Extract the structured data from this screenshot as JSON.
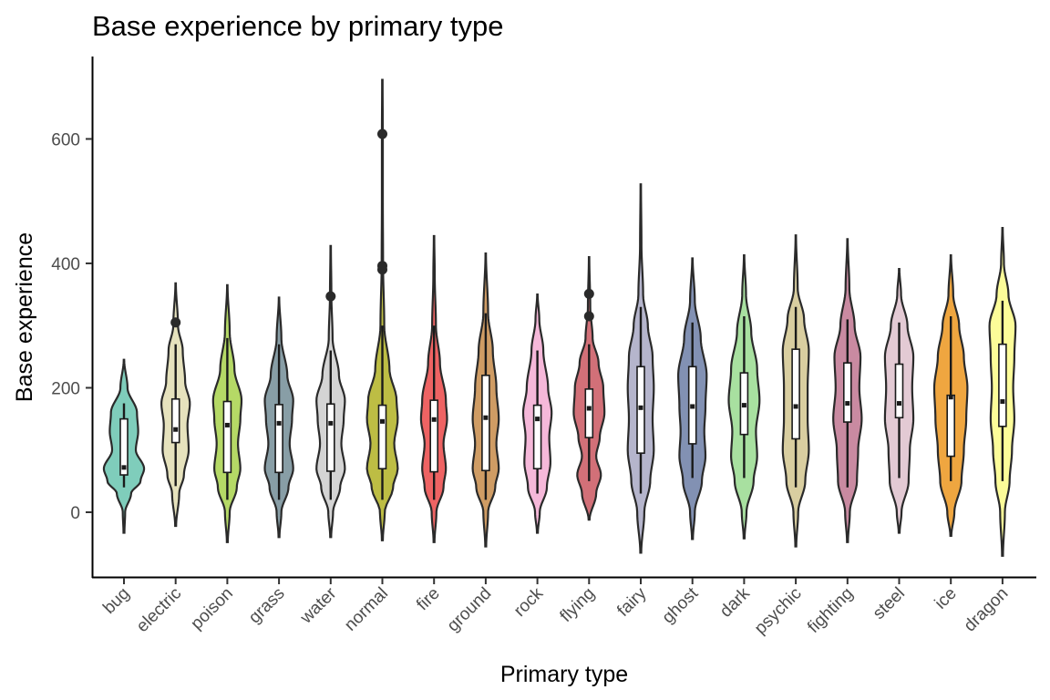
{
  "chart_data": {
    "type": "violin",
    "title": "Base experience by primary type",
    "xlabel": "Primary type",
    "ylabel": "Base experience",
    "ylim": [
      -105,
      730
    ],
    "yticks": [
      0,
      200,
      400,
      600
    ],
    "grid": false,
    "legend": "none",
    "categories": [
      {
        "name": "bug",
        "color": "#7fcdbb",
        "ymin": -33,
        "ymax": 245,
        "q1": 60,
        "median": 72,
        "q3": 150,
        "whisker_low": 40,
        "whisker_high": 175,
        "outliers": [],
        "density": [
          [
            -33,
            0.02
          ],
          [
            0,
            0.05
          ],
          [
            30,
            0.3
          ],
          [
            50,
            0.7
          ],
          [
            70,
            0.85
          ],
          [
            100,
            0.5
          ],
          [
            130,
            0.6
          ],
          [
            160,
            0.55
          ],
          [
            200,
            0.15
          ],
          [
            245,
            0.01
          ]
        ]
      },
      {
        "name": "electric",
        "color": "#e6e2bd",
        "ymin": -22,
        "ymax": 368,
        "q1": 112,
        "median": 133,
        "q3": 182,
        "whisker_low": 42,
        "whisker_high": 270,
        "outliers": [
          305
        ],
        "density": [
          [
            -22,
            0.02
          ],
          [
            30,
            0.15
          ],
          [
            60,
            0.35
          ],
          [
            100,
            0.55
          ],
          [
            140,
            0.5
          ],
          [
            175,
            0.6
          ],
          [
            210,
            0.4
          ],
          [
            260,
            0.3
          ],
          [
            300,
            0.1
          ],
          [
            368,
            0.01
          ]
        ]
      },
      {
        "name": "poison",
        "color": "#b5d966",
        "ymin": -48,
        "ymax": 365,
        "q1": 64,
        "median": 140,
        "q3": 178,
        "whisker_low": 20,
        "whisker_high": 280,
        "outliers": [],
        "density": [
          [
            -48,
            0.02
          ],
          [
            0,
            0.1
          ],
          [
            40,
            0.4
          ],
          [
            70,
            0.55
          ],
          [
            110,
            0.45
          ],
          [
            150,
            0.55
          ],
          [
            180,
            0.6
          ],
          [
            230,
            0.3
          ],
          [
            290,
            0.1
          ],
          [
            365,
            0.01
          ]
        ]
      },
      {
        "name": "grass",
        "color": "#889ea6",
        "ymin": -40,
        "ymax": 345,
        "q1": 64,
        "median": 143,
        "q3": 173,
        "whisker_low": 20,
        "whisker_high": 270,
        "outliers": [],
        "density": [
          [
            -40,
            0.02
          ],
          [
            0,
            0.1
          ],
          [
            40,
            0.4
          ],
          [
            70,
            0.6
          ],
          [
            110,
            0.45
          ],
          [
            150,
            0.55
          ],
          [
            180,
            0.6
          ],
          [
            220,
            0.35
          ],
          [
            280,
            0.1
          ],
          [
            345,
            0.01
          ]
        ]
      },
      {
        "name": "water",
        "color": "#d4d4d4",
        "ymin": -40,
        "ymax": 428,
        "q1": 66,
        "median": 143,
        "q3": 174,
        "whisker_low": 20,
        "whisker_high": 260,
        "outliers": [
          347
        ],
        "density": [
          [
            -40,
            0.02
          ],
          [
            0,
            0.1
          ],
          [
            40,
            0.4
          ],
          [
            70,
            0.6
          ],
          [
            110,
            0.45
          ],
          [
            150,
            0.55
          ],
          [
            180,
            0.6
          ],
          [
            220,
            0.35
          ],
          [
            280,
            0.08
          ],
          [
            350,
            0.03
          ],
          [
            428,
            0.01
          ]
        ]
      },
      {
        "name": "normal",
        "color": "#bdbd44",
        "ymin": -45,
        "ymax": 695,
        "q1": 70,
        "median": 146,
        "q3": 172,
        "whisker_low": 20,
        "whisker_high": 300,
        "outliers": [
          608,
          396,
          390
        ],
        "density": [
          [
            -45,
            0.02
          ],
          [
            0,
            0.1
          ],
          [
            40,
            0.45
          ],
          [
            70,
            0.65
          ],
          [
            110,
            0.5
          ],
          [
            150,
            0.65
          ],
          [
            180,
            0.6
          ],
          [
            230,
            0.3
          ],
          [
            300,
            0.08
          ],
          [
            400,
            0.03
          ],
          [
            500,
            0.02
          ],
          [
            600,
            0.02
          ],
          [
            695,
            0.01
          ]
        ]
      },
      {
        "name": "fire",
        "color": "#ee6363",
        "ymin": -48,
        "ymax": 444,
        "q1": 65,
        "median": 149,
        "q3": 180,
        "whisker_low": 20,
        "whisker_high": 300,
        "outliers": [],
        "density": [
          [
            -48,
            0.02
          ],
          [
            0,
            0.1
          ],
          [
            40,
            0.4
          ],
          [
            70,
            0.5
          ],
          [
            110,
            0.4
          ],
          [
            150,
            0.55
          ],
          [
            180,
            0.5
          ],
          [
            240,
            0.25
          ],
          [
            300,
            0.08
          ],
          [
            380,
            0.03
          ],
          [
            444,
            0.01
          ]
        ]
      },
      {
        "name": "ground",
        "color": "#cf9c64",
        "ymin": -55,
        "ymax": 416,
        "q1": 67,
        "median": 152,
        "q3": 220,
        "whisker_low": 20,
        "whisker_high": 320,
        "outliers": [],
        "density": [
          [
            -55,
            0.02
          ],
          [
            0,
            0.1
          ],
          [
            40,
            0.4
          ],
          [
            70,
            0.55
          ],
          [
            110,
            0.45
          ],
          [
            150,
            0.55
          ],
          [
            200,
            0.45
          ],
          [
            260,
            0.3
          ],
          [
            320,
            0.1
          ],
          [
            416,
            0.01
          ]
        ]
      },
      {
        "name": "rock",
        "color": "#f5b8d9",
        "ymin": -33,
        "ymax": 350,
        "q1": 70,
        "median": 150,
        "q3": 172,
        "whisker_low": 30,
        "whisker_high": 260,
        "outliers": [],
        "density": [
          [
            -33,
            0.02
          ],
          [
            0,
            0.1
          ],
          [
            40,
            0.4
          ],
          [
            80,
            0.55
          ],
          [
            120,
            0.5
          ],
          [
            160,
            0.6
          ],
          [
            200,
            0.45
          ],
          [
            260,
            0.25
          ],
          [
            310,
            0.08
          ],
          [
            350,
            0.01
          ]
        ]
      },
      {
        "name": "flying",
        "color": "#d27078",
        "ymin": -12,
        "ymax": 410,
        "q1": 120,
        "median": 167,
        "q3": 198,
        "whisker_low": 50,
        "whisker_high": 270,
        "outliers": [
          351,
          315
        ],
        "density": [
          [
            -12,
            0.02
          ],
          [
            30,
            0.3
          ],
          [
            60,
            0.5
          ],
          [
            90,
            0.3
          ],
          [
            120,
            0.45
          ],
          [
            160,
            0.65
          ],
          [
            200,
            0.6
          ],
          [
            240,
            0.4
          ],
          [
            280,
            0.15
          ],
          [
            330,
            0.05
          ],
          [
            410,
            0.01
          ]
        ]
      },
      {
        "name": "fairy",
        "color": "#b5b5cc",
        "ymin": -65,
        "ymax": 527,
        "q1": 95,
        "median": 168,
        "q3": 234,
        "whisker_low": 30,
        "whisker_high": 330,
        "outliers": [],
        "density": [
          [
            -65,
            0.02
          ],
          [
            0,
            0.15
          ],
          [
            50,
            0.4
          ],
          [
            100,
            0.55
          ],
          [
            150,
            0.5
          ],
          [
            200,
            0.55
          ],
          [
            250,
            0.5
          ],
          [
            300,
            0.3
          ],
          [
            350,
            0.1
          ],
          [
            430,
            0.03
          ],
          [
            527,
            0.01
          ]
        ]
      },
      {
        "name": "ghost",
        "color": "#8291b3",
        "ymin": -43,
        "ymax": 408,
        "q1": 110,
        "median": 170,
        "q3": 234,
        "whisker_low": 55,
        "whisker_high": 305,
        "outliers": [],
        "density": [
          [
            -43,
            0.02
          ],
          [
            0,
            0.1
          ],
          [
            50,
            0.4
          ],
          [
            90,
            0.55
          ],
          [
            130,
            0.5
          ],
          [
            170,
            0.55
          ],
          [
            220,
            0.6
          ],
          [
            280,
            0.35
          ],
          [
            340,
            0.1
          ],
          [
            408,
            0.01
          ]
        ]
      },
      {
        "name": "dark",
        "color": "#a8e0a0",
        "ymin": -42,
        "ymax": 413,
        "q1": 125,
        "median": 172,
        "q3": 224,
        "whisker_low": 55,
        "whisker_high": 315,
        "outliers": [],
        "density": [
          [
            -42,
            0.02
          ],
          [
            0,
            0.1
          ],
          [
            50,
            0.4
          ],
          [
            90,
            0.55
          ],
          [
            130,
            0.5
          ],
          [
            180,
            0.65
          ],
          [
            230,
            0.55
          ],
          [
            290,
            0.3
          ],
          [
            350,
            0.08
          ],
          [
            413,
            0.01
          ]
        ]
      },
      {
        "name": "psychic",
        "color": "#d9cea0",
        "ymin": -55,
        "ymax": 445,
        "q1": 118,
        "median": 170,
        "q3": 262,
        "whisker_low": 40,
        "whisker_high": 330,
        "outliers": [],
        "density": [
          [
            -55,
            0.02
          ],
          [
            0,
            0.1
          ],
          [
            50,
            0.4
          ],
          [
            100,
            0.55
          ],
          [
            150,
            0.5
          ],
          [
            200,
            0.5
          ],
          [
            260,
            0.55
          ],
          [
            310,
            0.35
          ],
          [
            360,
            0.08
          ],
          [
            445,
            0.01
          ]
        ]
      },
      {
        "name": "fighting",
        "color": "#c98aa1",
        "ymin": -48,
        "ymax": 439,
        "q1": 145,
        "median": 175,
        "q3": 240,
        "whisker_low": 40,
        "whisker_high": 310,
        "outliers": [],
        "density": [
          [
            -48,
            0.02
          ],
          [
            0,
            0.1
          ],
          [
            50,
            0.4
          ],
          [
            100,
            0.45
          ],
          [
            150,
            0.6
          ],
          [
            200,
            0.5
          ],
          [
            250,
            0.55
          ],
          [
            300,
            0.3
          ],
          [
            360,
            0.08
          ],
          [
            439,
            0.01
          ]
        ]
      },
      {
        "name": "steel",
        "color": "#e3cad4",
        "ymin": -33,
        "ymax": 391,
        "q1": 152,
        "median": 175,
        "q3": 238,
        "whisker_low": 55,
        "whisker_high": 305,
        "outliers": [],
        "density": [
          [
            -33,
            0.02
          ],
          [
            0,
            0.1
          ],
          [
            50,
            0.4
          ],
          [
            100,
            0.45
          ],
          [
            150,
            0.6
          ],
          [
            200,
            0.55
          ],
          [
            250,
            0.6
          ],
          [
            300,
            0.35
          ],
          [
            350,
            0.08
          ],
          [
            391,
            0.01
          ]
        ]
      },
      {
        "name": "ice",
        "color": "#efa640",
        "ymin": -38,
        "ymax": 413,
        "q1": 90,
        "median": 185,
        "q3": 188,
        "whisker_low": 50,
        "whisker_high": 315,
        "outliers": [],
        "density": [
          [
            -38,
            0.02
          ],
          [
            0,
            0.15
          ],
          [
            50,
            0.45
          ],
          [
            100,
            0.55
          ],
          [
            150,
            0.65
          ],
          [
            200,
            0.7
          ],
          [
            250,
            0.55
          ],
          [
            300,
            0.35
          ],
          [
            350,
            0.1
          ],
          [
            413,
            0.01
          ]
        ]
      },
      {
        "name": "dragon",
        "color": "#fcfc99",
        "ymin": -70,
        "ymax": 457,
        "q1": 138,
        "median": 178,
        "q3": 270,
        "whisker_low": 50,
        "whisker_high": 340,
        "outliers": [],
        "density": [
          [
            -70,
            0.02
          ],
          [
            0,
            0.1
          ],
          [
            50,
            0.3
          ],
          [
            100,
            0.4
          ],
          [
            150,
            0.5
          ],
          [
            200,
            0.45
          ],
          [
            250,
            0.5
          ],
          [
            300,
            0.55
          ],
          [
            350,
            0.25
          ],
          [
            400,
            0.06
          ],
          [
            457,
            0.01
          ]
        ]
      }
    ]
  }
}
